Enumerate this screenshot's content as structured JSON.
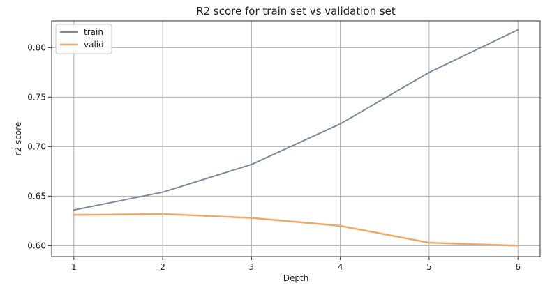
{
  "chart_data": {
    "type": "line",
    "title": "R2 score for train set vs validation set",
    "xlabel": "Depth",
    "ylabel": "r2 score",
    "x": [
      1,
      2,
      3,
      4,
      5,
      6
    ],
    "xlim": [
      0.75,
      6.25
    ],
    "ylim": [
      0.589,
      0.827
    ],
    "xticks": [
      "1",
      "2",
      "3",
      "4",
      "5",
      "6"
    ],
    "yticks": [
      "0.60",
      "0.65",
      "0.70",
      "0.75",
      "0.80"
    ],
    "grid": true,
    "legend_position": "top-left",
    "series": [
      {
        "name": "train",
        "color": "#7b8aa0",
        "values": [
          0.636,
          0.654,
          0.682,
          0.723,
          0.775,
          0.818
        ]
      },
      {
        "name": "valid",
        "color": "#f0a868",
        "values": [
          0.631,
          0.632,
          0.628,
          0.62,
          0.603,
          0.6
        ]
      }
    ]
  }
}
